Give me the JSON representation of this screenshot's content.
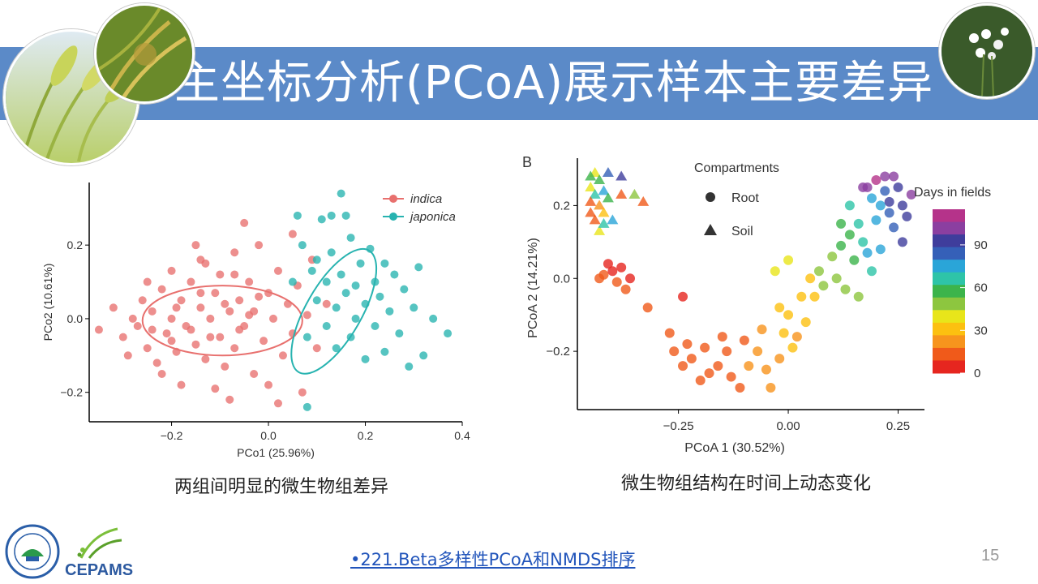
{
  "slide": {
    "title": "主坐标分析(PCoA)展示样本主要差异",
    "caption_left": "两组间明显的微生物组差异",
    "caption_right": "微生物组结构在时间上动态变化",
    "reference_link": "•221.Beta多样性PCoA和NMDS排序",
    "page_number": "15",
    "logo_text": "CEPAMS",
    "colors": {
      "title_band": "#5b8ac8",
      "indica": "#e8706e",
      "japonica": "#27b3b0",
      "link": "#2255bb"
    }
  },
  "chart_data": [
    {
      "type": "scatter",
      "panel_label": "",
      "xlabel": "PCo1 (25.96%)",
      "ylabel": "PCo2 (10.61%)",
      "xlim": [
        -0.37,
        0.4
      ],
      "ylim": [
        -0.28,
        0.37
      ],
      "xticks": [
        -0.2,
        0.0,
        0.2,
        0.4
      ],
      "xtick_labels": [
        "−0.2",
        "0.0",
        "0.2",
        "0.4"
      ],
      "yticks": [
        -0.2,
        0.0,
        0.2
      ],
      "ytick_labels": [
        "−0.2",
        "0.0",
        "0.2"
      ],
      "legend_position": "top-right",
      "series": [
        {
          "name": "indica",
          "color": "#e8706e",
          "ellipse": {
            "cx": -0.095,
            "cy": -0.005,
            "rx": 0.165,
            "ry": 0.095,
            "angle": 0
          },
          "points": [
            [
              -0.35,
              -0.03
            ],
            [
              -0.32,
              0.03
            ],
            [
              -0.3,
              -0.05
            ],
            [
              -0.29,
              -0.1
            ],
            [
              -0.27,
              -0.02
            ],
            [
              -0.26,
              0.05
            ],
            [
              -0.25,
              -0.08
            ],
            [
              -0.24,
              0.02
            ],
            [
              -0.23,
              -0.12
            ],
            [
              -0.22,
              0.08
            ],
            [
              -0.21,
              -0.04
            ],
            [
              -0.2,
              0.13
            ],
            [
              -0.2,
              0.0
            ],
            [
              -0.19,
              -0.09
            ],
            [
              -0.18,
              0.05
            ],
            [
              -0.17,
              -0.02
            ],
            [
              -0.16,
              0.1
            ],
            [
              -0.15,
              -0.07
            ],
            [
              -0.14,
              0.03
            ],
            [
              -0.13,
              0.15
            ],
            [
              -0.13,
              -0.11
            ],
            [
              -0.12,
              0.0
            ],
            [
              -0.11,
              0.07
            ],
            [
              -0.1,
              -0.05
            ],
            [
              -0.1,
              0.12
            ],
            [
              -0.09,
              -0.13
            ],
            [
              -0.08,
              0.02
            ],
            [
              -0.07,
              0.18
            ],
            [
              -0.07,
              -0.08
            ],
            [
              -0.06,
              0.05
            ],
            [
              -0.05,
              -0.02
            ],
            [
              -0.04,
              0.1
            ],
            [
              -0.03,
              -0.15
            ],
            [
              -0.03,
              0.02
            ],
            [
              -0.02,
              0.2
            ],
            [
              -0.01,
              -0.06
            ],
            [
              0.0,
              0.07
            ],
            [
              0.0,
              -0.18
            ],
            [
              0.01,
              0.0
            ],
            [
              0.02,
              0.13
            ],
            [
              0.03,
              -0.1
            ],
            [
              0.04,
              0.04
            ],
            [
              0.05,
              0.23
            ],
            [
              0.05,
              -0.04
            ],
            [
              0.06,
              0.09
            ],
            [
              0.07,
              -0.2
            ],
            [
              0.08,
              0.01
            ],
            [
              0.09,
              0.16
            ],
            [
              -0.15,
              0.2
            ],
            [
              -0.22,
              -0.15
            ],
            [
              -0.25,
              0.1
            ],
            [
              -0.18,
              -0.18
            ],
            [
              -0.11,
              -0.19
            ],
            [
              0.02,
              -0.23
            ],
            [
              -0.05,
              0.26
            ],
            [
              -0.14,
              0.16
            ],
            [
              -0.08,
              -0.22
            ],
            [
              0.1,
              -0.08
            ],
            [
              0.12,
              0.04
            ],
            [
              -0.28,
              0.0
            ],
            [
              -0.19,
              0.03
            ],
            [
              -0.16,
              -0.03
            ],
            [
              -0.12,
              -0.05
            ],
            [
              -0.09,
              0.04
            ],
            [
              -0.06,
              -0.03
            ],
            [
              -0.04,
              0.01
            ],
            [
              -0.02,
              0.06
            ],
            [
              -0.2,
              -0.06
            ],
            [
              -0.24,
              -0.03
            ],
            [
              -0.14,
              0.07
            ],
            [
              -0.07,
              0.12
            ]
          ]
        },
        {
          "name": "japonica",
          "color": "#27b3b0",
          "ellipse": {
            "cx": 0.135,
            "cy": 0.02,
            "rx": 0.145,
            "ry": 0.075,
            "angle": -60
          },
          "points": [
            [
              0.07,
              0.2
            ],
            [
              0.09,
              0.13
            ],
            [
              0.1,
              0.05
            ],
            [
              0.11,
              0.27
            ],
            [
              0.12,
              -0.02
            ],
            [
              0.12,
              0.1
            ],
            [
              0.13,
              0.18
            ],
            [
              0.14,
              -0.08
            ],
            [
              0.14,
              0.03
            ],
            [
              0.15,
              0.34
            ],
            [
              0.15,
              0.12
            ],
            [
              0.16,
              0.07
            ],
            [
              0.17,
              -0.05
            ],
            [
              0.17,
              0.22
            ],
            [
              0.18,
              0.0
            ],
            [
              0.18,
              0.09
            ],
            [
              0.19,
              0.15
            ],
            [
              0.2,
              -0.11
            ],
            [
              0.2,
              0.04
            ],
            [
              0.21,
              0.19
            ],
            [
              0.22,
              -0.02
            ],
            [
              0.22,
              0.1
            ],
            [
              0.23,
              0.06
            ],
            [
              0.24,
              -0.09
            ],
            [
              0.24,
              0.15
            ],
            [
              0.25,
              0.02
            ],
            [
              0.26,
              0.12
            ],
            [
              0.27,
              -0.04
            ],
            [
              0.28,
              0.08
            ],
            [
              0.29,
              -0.13
            ],
            [
              0.3,
              0.03
            ],
            [
              0.31,
              0.14
            ],
            [
              0.32,
              -0.1
            ],
            [
              0.34,
              0.0
            ],
            [
              0.37,
              -0.04
            ],
            [
              0.08,
              -0.24
            ],
            [
              0.06,
              0.28
            ],
            [
              0.13,
              0.28
            ],
            [
              0.16,
              0.28
            ],
            [
              0.1,
              0.16
            ],
            [
              0.05,
              0.1
            ],
            [
              0.08,
              -0.05
            ]
          ]
        }
      ]
    },
    {
      "type": "scatter",
      "panel_label": "B",
      "xlabel": "PCoA 1 (30.52%)",
      "ylabel": "PCoA 2 (14.21%)",
      "xlim": [
        -0.48,
        0.31
      ],
      "ylim": [
        -0.36,
        0.33
      ],
      "xticks": [
        -0.25,
        0.0,
        0.25
      ],
      "xtick_labels": [
        "−0.25",
        "0.00",
        "0.25"
      ],
      "yticks": [
        -0.2,
        0.0,
        0.2
      ],
      "ytick_labels": [
        "−0.2",
        "0.0",
        "0.2"
      ],
      "legend_title": "Compartments",
      "legend_items": [
        {
          "label": "Root",
          "shape": "circle"
        },
        {
          "label": "Soil",
          "shape": "triangle"
        }
      ],
      "colorbar": {
        "title": "Days in fields",
        "min": 0,
        "max": 115,
        "ticks": [
          0,
          30,
          60,
          90
        ],
        "colors": [
          "#e6261f",
          "#f05a1a",
          "#f7941d",
          "#fcc010",
          "#e8e51a",
          "#8dc63f",
          "#3cb44b",
          "#2ec4a8",
          "#2aa5d8",
          "#3560b8",
          "#3f3d9c",
          "#8b3fa0",
          "#b5338a"
        ]
      },
      "root_points": [
        [
          -0.42,
          0.01,
          5
        ],
        [
          -0.4,
          0.02,
          3
        ],
        [
          -0.39,
          -0.01,
          6
        ],
        [
          -0.41,
          0.04,
          2
        ],
        [
          -0.38,
          0.03,
          4
        ],
        [
          -0.37,
          -0.03,
          7
        ],
        [
          -0.36,
          0.0,
          3
        ],
        [
          -0.43,
          -0.0,
          8
        ],
        [
          -0.32,
          -0.08,
          5
        ],
        [
          -0.24,
          -0.05,
          4
        ],
        [
          -0.27,
          -0.15,
          6
        ],
        [
          -0.26,
          -0.2,
          8
        ],
        [
          -0.24,
          -0.24,
          7
        ],
        [
          -0.22,
          -0.22,
          9
        ],
        [
          -0.2,
          -0.28,
          10
        ],
        [
          -0.18,
          -0.26,
          12
        ],
        [
          -0.16,
          -0.24,
          11
        ],
        [
          -0.14,
          -0.2,
          14
        ],
        [
          -0.13,
          -0.27,
          9
        ],
        [
          -0.11,
          -0.3,
          6
        ],
        [
          -0.09,
          -0.24,
          16
        ],
        [
          -0.07,
          -0.2,
          18
        ],
        [
          -0.05,
          -0.25,
          20
        ],
        [
          -0.04,
          -0.3,
          15
        ],
        [
          -0.02,
          -0.22,
          22
        ],
        [
          -0.01,
          -0.15,
          25
        ],
        [
          0.0,
          -0.1,
          28
        ],
        [
          0.01,
          -0.19,
          24
        ],
        [
          0.03,
          -0.05,
          30
        ],
        [
          0.04,
          -0.12,
          27
        ],
        [
          0.05,
          0.0,
          33
        ],
        [
          0.06,
          -0.05,
          32
        ],
        [
          -0.03,
          0.02,
          35
        ],
        [
          0.0,
          0.05,
          38
        ],
        [
          -0.02,
          -0.08,
          26
        ],
        [
          0.02,
          -0.16,
          20
        ],
        [
          -0.06,
          -0.14,
          19
        ],
        [
          -0.1,
          -0.17,
          13
        ],
        [
          -0.15,
          -0.16,
          10
        ],
        [
          -0.19,
          -0.19,
          8
        ],
        [
          -0.23,
          -0.18,
          6
        ],
        [
          0.07,
          0.02,
          45
        ],
        [
          0.08,
          -0.02,
          48
        ],
        [
          0.1,
          0.06,
          50
        ],
        [
          0.11,
          0.0,
          52
        ],
        [
          0.12,
          0.09,
          55
        ],
        [
          0.13,
          -0.03,
          50
        ],
        [
          0.14,
          0.12,
          58
        ],
        [
          0.15,
          0.05,
          60
        ],
        [
          0.16,
          -0.05,
          52
        ],
        [
          0.12,
          0.15,
          62
        ],
        [
          0.14,
          0.2,
          65
        ],
        [
          0.16,
          0.15,
          68
        ],
        [
          0.17,
          0.1,
          70
        ],
        [
          0.18,
          0.07,
          72
        ],
        [
          0.19,
          0.22,
          75
        ],
        [
          0.2,
          0.16,
          78
        ],
        [
          0.21,
          0.2,
          80
        ],
        [
          0.22,
          0.24,
          85
        ],
        [
          0.23,
          0.18,
          88
        ],
        [
          0.24,
          0.14,
          90
        ],
        [
          0.25,
          0.25,
          95
        ],
        [
          0.26,
          0.2,
          98
        ],
        [
          0.27,
          0.17,
          100
        ],
        [
          0.24,
          0.28,
          105
        ],
        [
          0.22,
          0.28,
          110
        ],
        [
          0.2,
          0.27,
          112
        ],
        [
          0.18,
          0.25,
          108
        ],
        [
          0.28,
          0.23,
          102
        ],
        [
          0.26,
          0.1,
          92
        ],
        [
          0.21,
          0.08,
          80
        ],
        [
          0.19,
          0.02,
          70
        ],
        [
          0.17,
          0.25,
          103
        ],
        [
          0.23,
          0.21,
          97
        ]
      ],
      "soil_points": [
        [
          -0.44,
          0.29,
          40
        ],
        [
          -0.43,
          0.27,
          55
        ],
        [
          -0.45,
          0.25,
          35
        ],
        [
          -0.44,
          0.23,
          70
        ],
        [
          -0.43,
          0.2,
          20
        ],
        [
          -0.45,
          0.18,
          10
        ],
        [
          -0.42,
          0.24,
          80
        ],
        [
          -0.41,
          0.22,
          60
        ],
        [
          -0.44,
          0.16,
          5
        ],
        [
          -0.42,
          0.18,
          30
        ],
        [
          -0.4,
          0.16,
          75
        ],
        [
          -0.38,
          0.23,
          10
        ],
        [
          -0.38,
          0.28,
          100
        ],
        [
          -0.35,
          0.23,
          45
        ],
        [
          -0.33,
          0.21,
          5
        ],
        [
          -0.41,
          0.29,
          85
        ],
        [
          -0.45,
          0.28,
          60
        ],
        [
          -0.43,
          0.13,
          40
        ],
        [
          -0.45,
          0.21,
          12
        ],
        [
          -0.42,
          0.15,
          70
        ]
      ]
    }
  ]
}
